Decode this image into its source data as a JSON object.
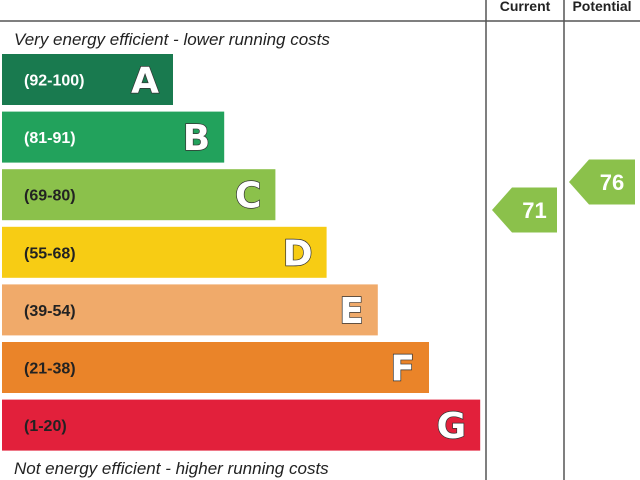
{
  "chart_data": {
    "type": "bar",
    "title": "",
    "top_caption": "Very energy efficient - lower running costs",
    "bottom_caption": "Not energy efficient - higher running costs",
    "columns": [
      "Current",
      "Potential"
    ],
    "bands": [
      {
        "letter": "A",
        "range": "(92-100)",
        "color": "#197a4f",
        "range_color": "#ffffff"
      },
      {
        "letter": "B",
        "range": "(81-91)",
        "color": "#22a25c",
        "range_color": "#ffffff"
      },
      {
        "letter": "C",
        "range": "(69-80)",
        "color": "#8bc14b",
        "range_color": "#222222"
      },
      {
        "letter": "D",
        "range": "(55-68)",
        "color": "#f7cc14",
        "range_color": "#222222"
      },
      {
        "letter": "E",
        "range": "(39-54)",
        "color": "#f0aa6a",
        "range_color": "#222222"
      },
      {
        "letter": "F",
        "range": "(21-38)",
        "color": "#ea8429",
        "range_color": "#222222"
      },
      {
        "letter": "G",
        "range": "(1-20)",
        "color": "#e2203b",
        "range_color": "#222222"
      }
    ],
    "current": {
      "value": 71,
      "label": "71",
      "band": "C",
      "color": "#8bc14b"
    },
    "potential": {
      "value": 76,
      "label": "76",
      "band": "C",
      "color": "#8bc14b"
    }
  }
}
